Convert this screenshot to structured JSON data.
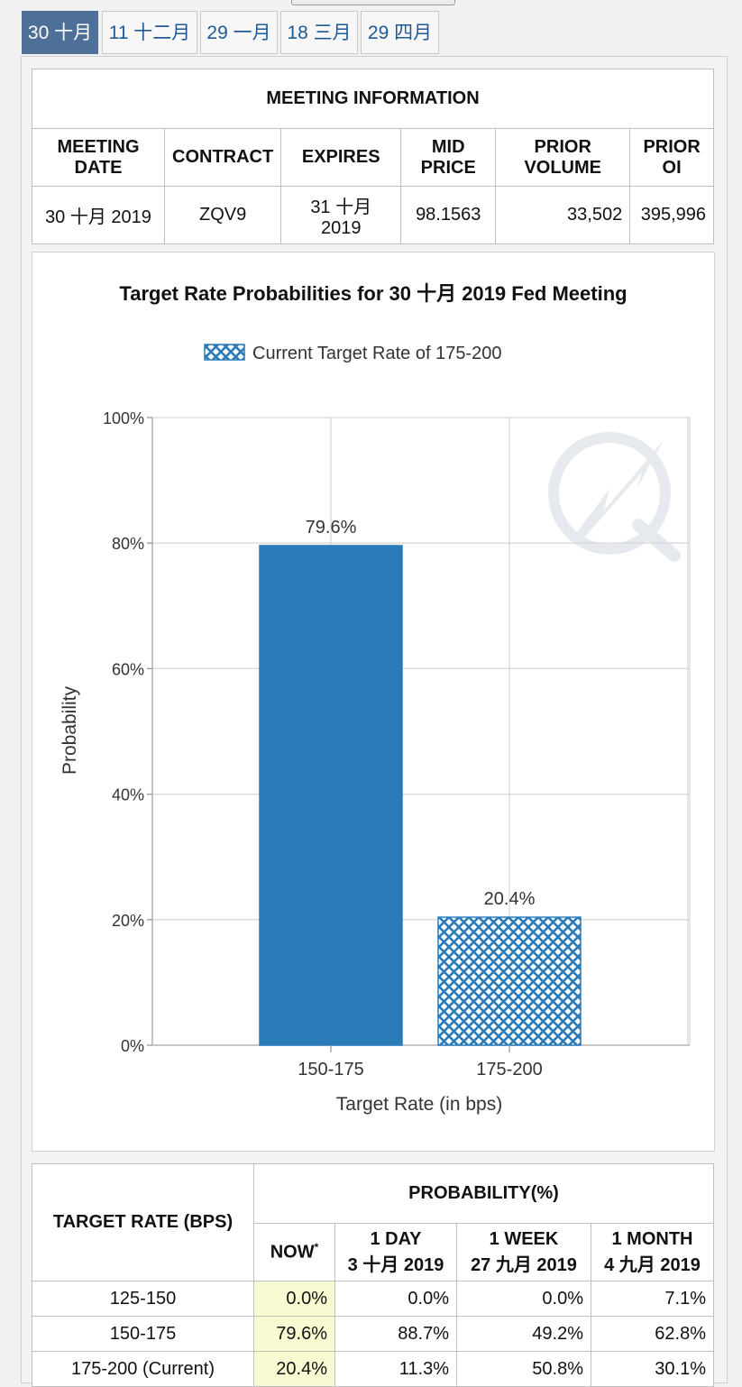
{
  "tabs": [
    "30 十月",
    "11 十二月",
    "29 一月",
    "18 三月",
    "29 四月"
  ],
  "meeting": {
    "section_title": "MEETING INFORMATION",
    "headers": {
      "date": [
        "MEETING",
        "DATE"
      ],
      "contract": "CONTRACT",
      "expires": "EXPIRES",
      "mid_price": [
        "MID",
        "PRICE"
      ],
      "prior_volume": [
        "PRIOR",
        "VOLUME"
      ],
      "prior_oi": [
        "PRIOR",
        "OI"
      ]
    },
    "row": {
      "date": "30 十月 2019",
      "contract": "ZQV9",
      "expires": [
        "31 十月",
        "2019"
      ],
      "mid_price": "98.1563",
      "prior_volume": "33,502",
      "prior_oi": "395,996"
    }
  },
  "chart_data": {
    "type": "bar",
    "title": "Target Rate Probabilities for 30 十月 2019  Fed Meeting",
    "legend": "Current Target Rate of 175-200",
    "legend_placement": "top-center",
    "categories": [
      "150-175",
      "175-200"
    ],
    "values": [
      79.6,
      20.4
    ],
    "value_labels": [
      "79.6%",
      "20.4%"
    ],
    "current_category": "175-200",
    "xlabel": "Target Rate (in bps)",
    "ylabel": "Probability",
    "ylim": [
      0,
      100
    ],
    "yticks": [
      0,
      20,
      40,
      60,
      80,
      100
    ],
    "ytick_labels": [
      "0%",
      "20%",
      "40%",
      "60%",
      "80%",
      "100%"
    ],
    "grid": true,
    "colors": {
      "bar": "#2b7bb9",
      "grid": "#d8d8d8"
    }
  },
  "probability": {
    "target_header": "TARGET RATE (BPS)",
    "group_header": "PROBABILITY(%)",
    "cols": {
      "now": "NOW",
      "now_mark": "*",
      "day": [
        "1 DAY",
        "3 十月 2019"
      ],
      "week": [
        "1 WEEK",
        "27 九月 2019"
      ],
      "month": [
        "1 MONTH",
        "4 九月 2019"
      ]
    },
    "rows": [
      {
        "rate": "125-150",
        "now": "0.0%",
        "day": "0.0%",
        "week": "0.0%",
        "month": "7.1%"
      },
      {
        "rate": "150-175",
        "now": "79.6%",
        "day": "88.7%",
        "week": "49.2%",
        "month": "62.8%"
      },
      {
        "rate": "175-200 (Current)",
        "now": "20.4%",
        "day": "11.3%",
        "week": "50.8%",
        "month": "30.1%"
      }
    ]
  }
}
